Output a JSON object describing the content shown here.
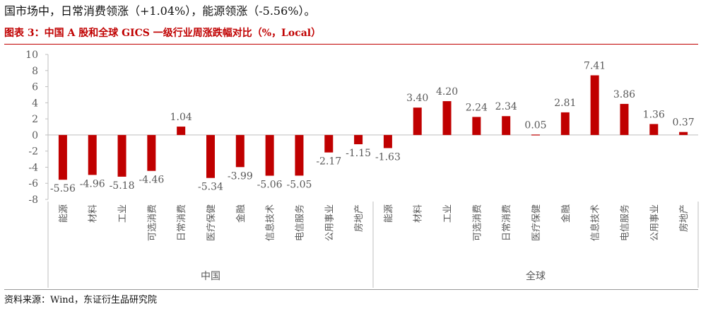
{
  "intro_text": "国市场中，日常消费领涨（+1.04%），能源领涨（-5.56%）。",
  "figure_title": "图表 3：中国 A 股和全球 GICS 一级行业周涨跌幅对比（%，Local）",
  "source_text": "资料来源：Wind，东证衍生品研究院",
  "colors": {
    "bar": "#c00000",
    "axis": "#bfbfbf",
    "text": "#595959"
  },
  "chart_data": {
    "type": "bar",
    "title": "中国 A 股和全球 GICS 一级行业周涨跌幅对比（%，Local）",
    "ylim": [
      -8,
      10
    ],
    "yticks": [
      -8,
      -6,
      -4,
      -2,
      0,
      2,
      4,
      6,
      8,
      10
    ],
    "grid": false,
    "legend": "none",
    "groups": [
      {
        "name": "中国",
        "categories": [
          "能源",
          "材料",
          "工业",
          "可选消费",
          "日常消费",
          "医疗保健",
          "金融",
          "信息技术",
          "电信服务",
          "公用事业",
          "房地产"
        ],
        "values": [
          -5.56,
          -4.96,
          -5.18,
          -4.46,
          1.04,
          -5.34,
          -3.99,
          -5.06,
          -5.05,
          -2.17,
          -1.15
        ],
        "labels": [
          "-5.56",
          "-4.96",
          "-5.18",
          "-4.46",
          "1.04",
          "-5.34",
          "-3.99",
          "-5.06",
          "-5.05",
          "-2.17",
          "-1.15"
        ]
      },
      {
        "name": "全球",
        "categories": [
          "能源",
          "材料",
          "工业",
          "可选消费",
          "日常消费",
          "医疗保健",
          "金融",
          "信息技术",
          "电信服务",
          "公用事业",
          "房地产"
        ],
        "values": [
          -1.63,
          3.4,
          4.2,
          2.24,
          2.34,
          0.05,
          2.81,
          7.41,
          3.86,
          1.36,
          0.37
        ],
        "labels": [
          "-1.63",
          "3.40",
          "4.20",
          "2.24",
          "2.34",
          "0.05",
          "2.81",
          "7.41",
          "3.86",
          "1.36",
          "0.37"
        ]
      }
    ]
  }
}
